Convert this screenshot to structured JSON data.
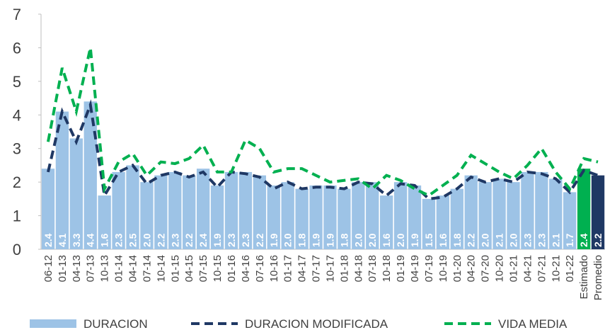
{
  "chart_data": {
    "type": "bar",
    "categories": [
      "06-12",
      "01-13",
      "04-13",
      "07-13",
      "10-13",
      "01-14",
      "04-14",
      "07-14",
      "10-14",
      "01-15",
      "04-15",
      "07-15",
      "10-15",
      "01-16",
      "04-16",
      "07-16",
      "10-16",
      "01-17",
      "04-17",
      "07-17",
      "10-17",
      "01-18",
      "04-18",
      "07-18",
      "10-18",
      "01-19",
      "04-19",
      "07-19",
      "10-19",
      "01-20",
      "04-20",
      "07-20",
      "10-20",
      "01-21",
      "04-21",
      "07-21",
      "10-21",
      "01-22",
      "Estimado",
      "Promedio"
    ],
    "ylim": [
      0,
      7
    ],
    "yticks": [
      0,
      1,
      2,
      3,
      4,
      5,
      6,
      7
    ],
    "series": [
      {
        "name": "DURACION",
        "type": "bar",
        "color": "#9dc3e6",
        "colors": [
          "#9dc3e6",
          "#9dc3e6",
          "#9dc3e6",
          "#9dc3e6",
          "#9dc3e6",
          "#9dc3e6",
          "#9dc3e6",
          "#9dc3e6",
          "#9dc3e6",
          "#9dc3e6",
          "#9dc3e6",
          "#9dc3e6",
          "#9dc3e6",
          "#9dc3e6",
          "#9dc3e6",
          "#9dc3e6",
          "#9dc3e6",
          "#9dc3e6",
          "#9dc3e6",
          "#9dc3e6",
          "#9dc3e6",
          "#9dc3e6",
          "#9dc3e6",
          "#9dc3e6",
          "#9dc3e6",
          "#9dc3e6",
          "#9dc3e6",
          "#9dc3e6",
          "#9dc3e6",
          "#9dc3e6",
          "#9dc3e6",
          "#9dc3e6",
          "#9dc3e6",
          "#9dc3e6",
          "#9dc3e6",
          "#9dc3e6",
          "#9dc3e6",
          "#9dc3e6",
          "#00b050",
          "#1f3864"
        ],
        "values": [
          2.4,
          4.1,
          3.3,
          4.4,
          1.6,
          2.3,
          2.5,
          2.0,
          2.2,
          2.3,
          2.2,
          2.4,
          1.9,
          2.3,
          2.3,
          2.2,
          1.9,
          2.0,
          1.8,
          1.9,
          1.9,
          1.8,
          2.0,
          2.0,
          1.6,
          2.0,
          1.9,
          1.5,
          1.6,
          1.8,
          2.2,
          2.0,
          2.1,
          2.0,
          2.3,
          2.3,
          2.1,
          1.7,
          2.4,
          2.2
        ],
        "value_labels": [
          "2.4",
          "4.1",
          "3.3",
          "4.4",
          "1.6",
          "2.3",
          "2.5",
          "2.0",
          "2.2",
          "2.3",
          "2.2",
          "2.4",
          "1.9",
          "2.3",
          "2.3",
          "2.2",
          "1.9",
          "2.0",
          "1.8",
          "1.9",
          "1.9",
          "1.8",
          "2.0",
          "2.0",
          "1.6",
          "2.0",
          "1.9",
          "1.5",
          "1.6",
          "1.8",
          "2.2",
          "2.0",
          "2.1",
          "2.0",
          "2.3",
          "2.3",
          "2.1",
          "1.7",
          "2.4",
          "2.2"
        ]
      },
      {
        "name": "DURACION MODIFICADA",
        "type": "line",
        "color": "#1f3864",
        "values": [
          2.3,
          4.1,
          3.2,
          4.3,
          1.6,
          2.3,
          2.5,
          1.95,
          2.2,
          2.3,
          2.15,
          2.3,
          1.85,
          2.3,
          2.25,
          2.15,
          1.8,
          2.0,
          1.8,
          1.85,
          1.85,
          1.8,
          2.0,
          1.95,
          1.6,
          1.95,
          1.9,
          1.5,
          1.55,
          1.8,
          2.15,
          2.0,
          2.1,
          2.0,
          2.3,
          2.25,
          2.1,
          1.7,
          2.35,
          2.2
        ]
      },
      {
        "name": "VIDA MEDIA",
        "type": "line",
        "color": "#00b050",
        "values": [
          3.2,
          5.4,
          4.1,
          6.0,
          1.8,
          2.6,
          2.85,
          2.2,
          2.6,
          2.55,
          2.7,
          3.1,
          2.3,
          2.3,
          3.25,
          3.0,
          2.3,
          2.4,
          2.4,
          2.2,
          2.0,
          2.05,
          2.1,
          1.8,
          2.2,
          2.05,
          1.8,
          1.6,
          1.9,
          2.2,
          2.8,
          2.55,
          2.3,
          2.1,
          2.5,
          3.0,
          2.3,
          1.8,
          2.7,
          2.6
        ]
      }
    ]
  }
}
